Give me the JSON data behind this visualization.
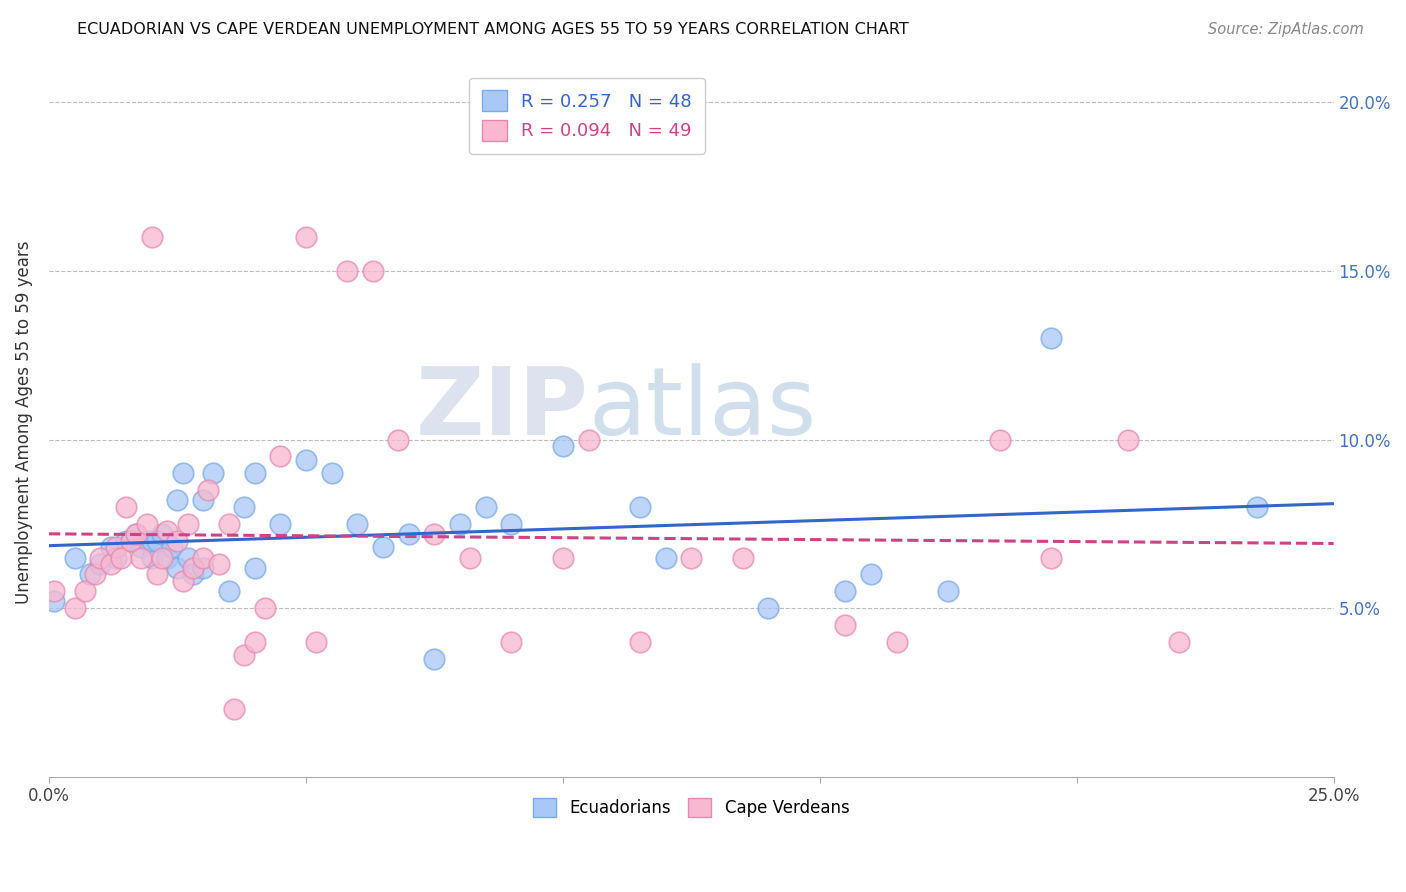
{
  "title": "ECUADORIAN VS CAPE VERDEAN UNEMPLOYMENT AMONG AGES 55 TO 59 YEARS CORRELATION CHART",
  "source": "Source: ZipAtlas.com",
  "ylabel": "Unemployment Among Ages 55 to 59 years",
  "xlim": [
    0.0,
    0.25
  ],
  "ylim": [
    0.0,
    0.21
  ],
  "xticks": [
    0.0,
    0.05,
    0.1,
    0.15,
    0.2,
    0.25
  ],
  "yticks": [
    0.05,
    0.1,
    0.15,
    0.2
  ],
  "xticklabels": [
    "0.0%",
    "",
    "",
    "",
    "",
    "25.0%"
  ],
  "yticklabels_right": [
    "5.0%",
    "10.0%",
    "15.0%",
    "20.0%"
  ],
  "ecuadorian_color": "#a8c8f8",
  "ecuadorian_edge_color": "#7aaae8",
  "cape_verdean_color": "#f8b8d0",
  "cape_verdean_edge_color": "#e888b0",
  "ecuadorian_line_color": "#3366cc",
  "cape_verdean_line_color": "#cc4488",
  "R_ecuadorian": 0.257,
  "N_ecuadorian": 48,
  "R_cape_verdean": 0.094,
  "N_cape_verdean": 49,
  "watermark_zip": "ZIP",
  "watermark_atlas": "atlas",
  "ecuadorian_x": [
    0.001,
    0.005,
    0.008,
    0.01,
    0.012,
    0.013,
    0.015,
    0.016,
    0.017,
    0.018,
    0.019,
    0.02,
    0.02,
    0.021,
    0.022,
    0.023,
    0.024,
    0.025,
    0.025,
    0.026,
    0.027,
    0.028,
    0.03,
    0.03,
    0.032,
    0.035,
    0.038,
    0.04,
    0.04,
    0.045,
    0.05,
    0.055,
    0.06,
    0.065,
    0.07,
    0.075,
    0.08,
    0.085,
    0.09,
    0.1,
    0.115,
    0.12,
    0.14,
    0.155,
    0.16,
    0.175,
    0.195,
    0.235
  ],
  "ecuadorian_y": [
    0.052,
    0.065,
    0.06,
    0.063,
    0.068,
    0.065,
    0.07,
    0.07,
    0.072,
    0.068,
    0.07,
    0.065,
    0.07,
    0.07,
    0.072,
    0.065,
    0.068,
    0.082,
    0.062,
    0.09,
    0.065,
    0.06,
    0.082,
    0.062,
    0.09,
    0.055,
    0.08,
    0.09,
    0.062,
    0.075,
    0.094,
    0.09,
    0.075,
    0.068,
    0.072,
    0.035,
    0.075,
    0.08,
    0.075,
    0.098,
    0.08,
    0.065,
    0.05,
    0.055,
    0.06,
    0.055,
    0.13,
    0.08
  ],
  "cape_verdean_x": [
    0.001,
    0.005,
    0.007,
    0.009,
    0.01,
    0.012,
    0.013,
    0.014,
    0.015,
    0.016,
    0.017,
    0.018,
    0.019,
    0.02,
    0.021,
    0.022,
    0.023,
    0.025,
    0.026,
    0.027,
    0.028,
    0.03,
    0.031,
    0.033,
    0.035,
    0.036,
    0.038,
    0.04,
    0.042,
    0.045,
    0.05,
    0.052,
    0.058,
    0.063,
    0.068,
    0.075,
    0.082,
    0.09,
    0.1,
    0.105,
    0.115,
    0.125,
    0.135,
    0.155,
    0.165,
    0.185,
    0.195,
    0.21,
    0.22
  ],
  "cape_verdean_y": [
    0.055,
    0.05,
    0.055,
    0.06,
    0.065,
    0.063,
    0.068,
    0.065,
    0.08,
    0.07,
    0.072,
    0.065,
    0.075,
    0.16,
    0.06,
    0.065,
    0.073,
    0.07,
    0.058,
    0.075,
    0.062,
    0.065,
    0.085,
    0.063,
    0.075,
    0.02,
    0.036,
    0.04,
    0.05,
    0.095,
    0.16,
    0.04,
    0.15,
    0.15,
    0.1,
    0.072,
    0.065,
    0.04,
    0.065,
    0.1,
    0.04,
    0.065,
    0.065,
    0.045,
    0.04,
    0.1,
    0.065,
    0.1,
    0.04
  ]
}
